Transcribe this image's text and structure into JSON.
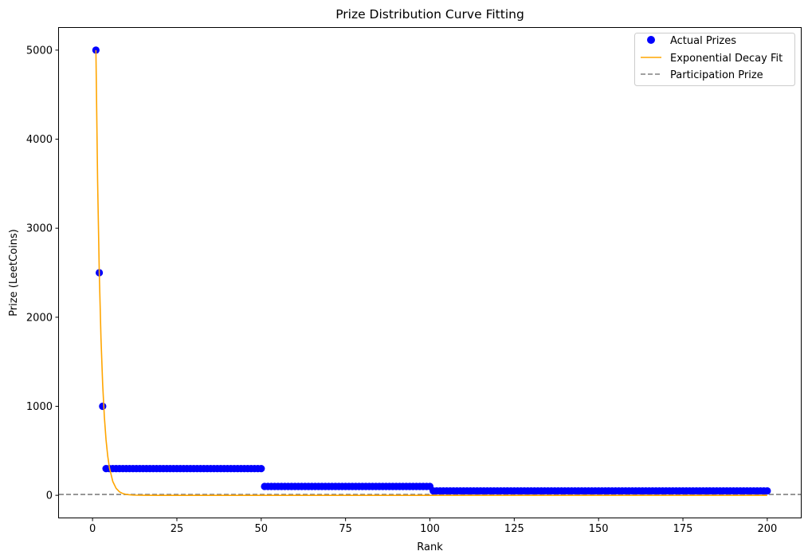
{
  "chart_data": {
    "type": "scatter",
    "title": "Prize Distribution Curve Fitting",
    "xlabel": "Rank",
    "ylabel": "Prize (LeetCoins)",
    "xlim": [
      -9.95,
      209.95
    ],
    "ylim": [
      -249.5,
      5249.5
    ],
    "x_ticks": [
      0,
      25,
      50,
      75,
      100,
      125,
      150,
      175,
      200
    ],
    "y_ticks": [
      0,
      1000,
      2000,
      3000,
      4000,
      5000
    ],
    "grid": false,
    "legend_position": "top-right",
    "series": [
      {
        "name": "Actual Prizes",
        "kind": "scatter",
        "color": "#0000ff",
        "points_explicit": [
          [
            1,
            5000
          ],
          [
            2,
            2500
          ],
          [
            3,
            1000
          ]
        ],
        "points_runs": [
          {
            "from": 4,
            "to": 50,
            "value": 300
          },
          {
            "from": 51,
            "to": 100,
            "value": 100
          },
          {
            "from": 101,
            "to": 200,
            "value": 50
          }
        ]
      },
      {
        "name": "Exponential Decay Fit",
        "kind": "line",
        "color": "#ffa500",
        "x": [
          1,
          1.5,
          2,
          2.5,
          3,
          3.5,
          4,
          4.5,
          5,
          6,
          7,
          8,
          9,
          10,
          12,
          15,
          20,
          30,
          50,
          100,
          150,
          200
        ],
        "y": [
          5000,
          3535,
          2500,
          1768,
          1250,
          884,
          625,
          442,
          312,
          156,
          78,
          39,
          20,
          10,
          2.4,
          0.3,
          0,
          0,
          0,
          0,
          0,
          0
        ]
      },
      {
        "name": "Participation Prize",
        "kind": "hline",
        "color": "#808080",
        "y": 10
      }
    ]
  }
}
